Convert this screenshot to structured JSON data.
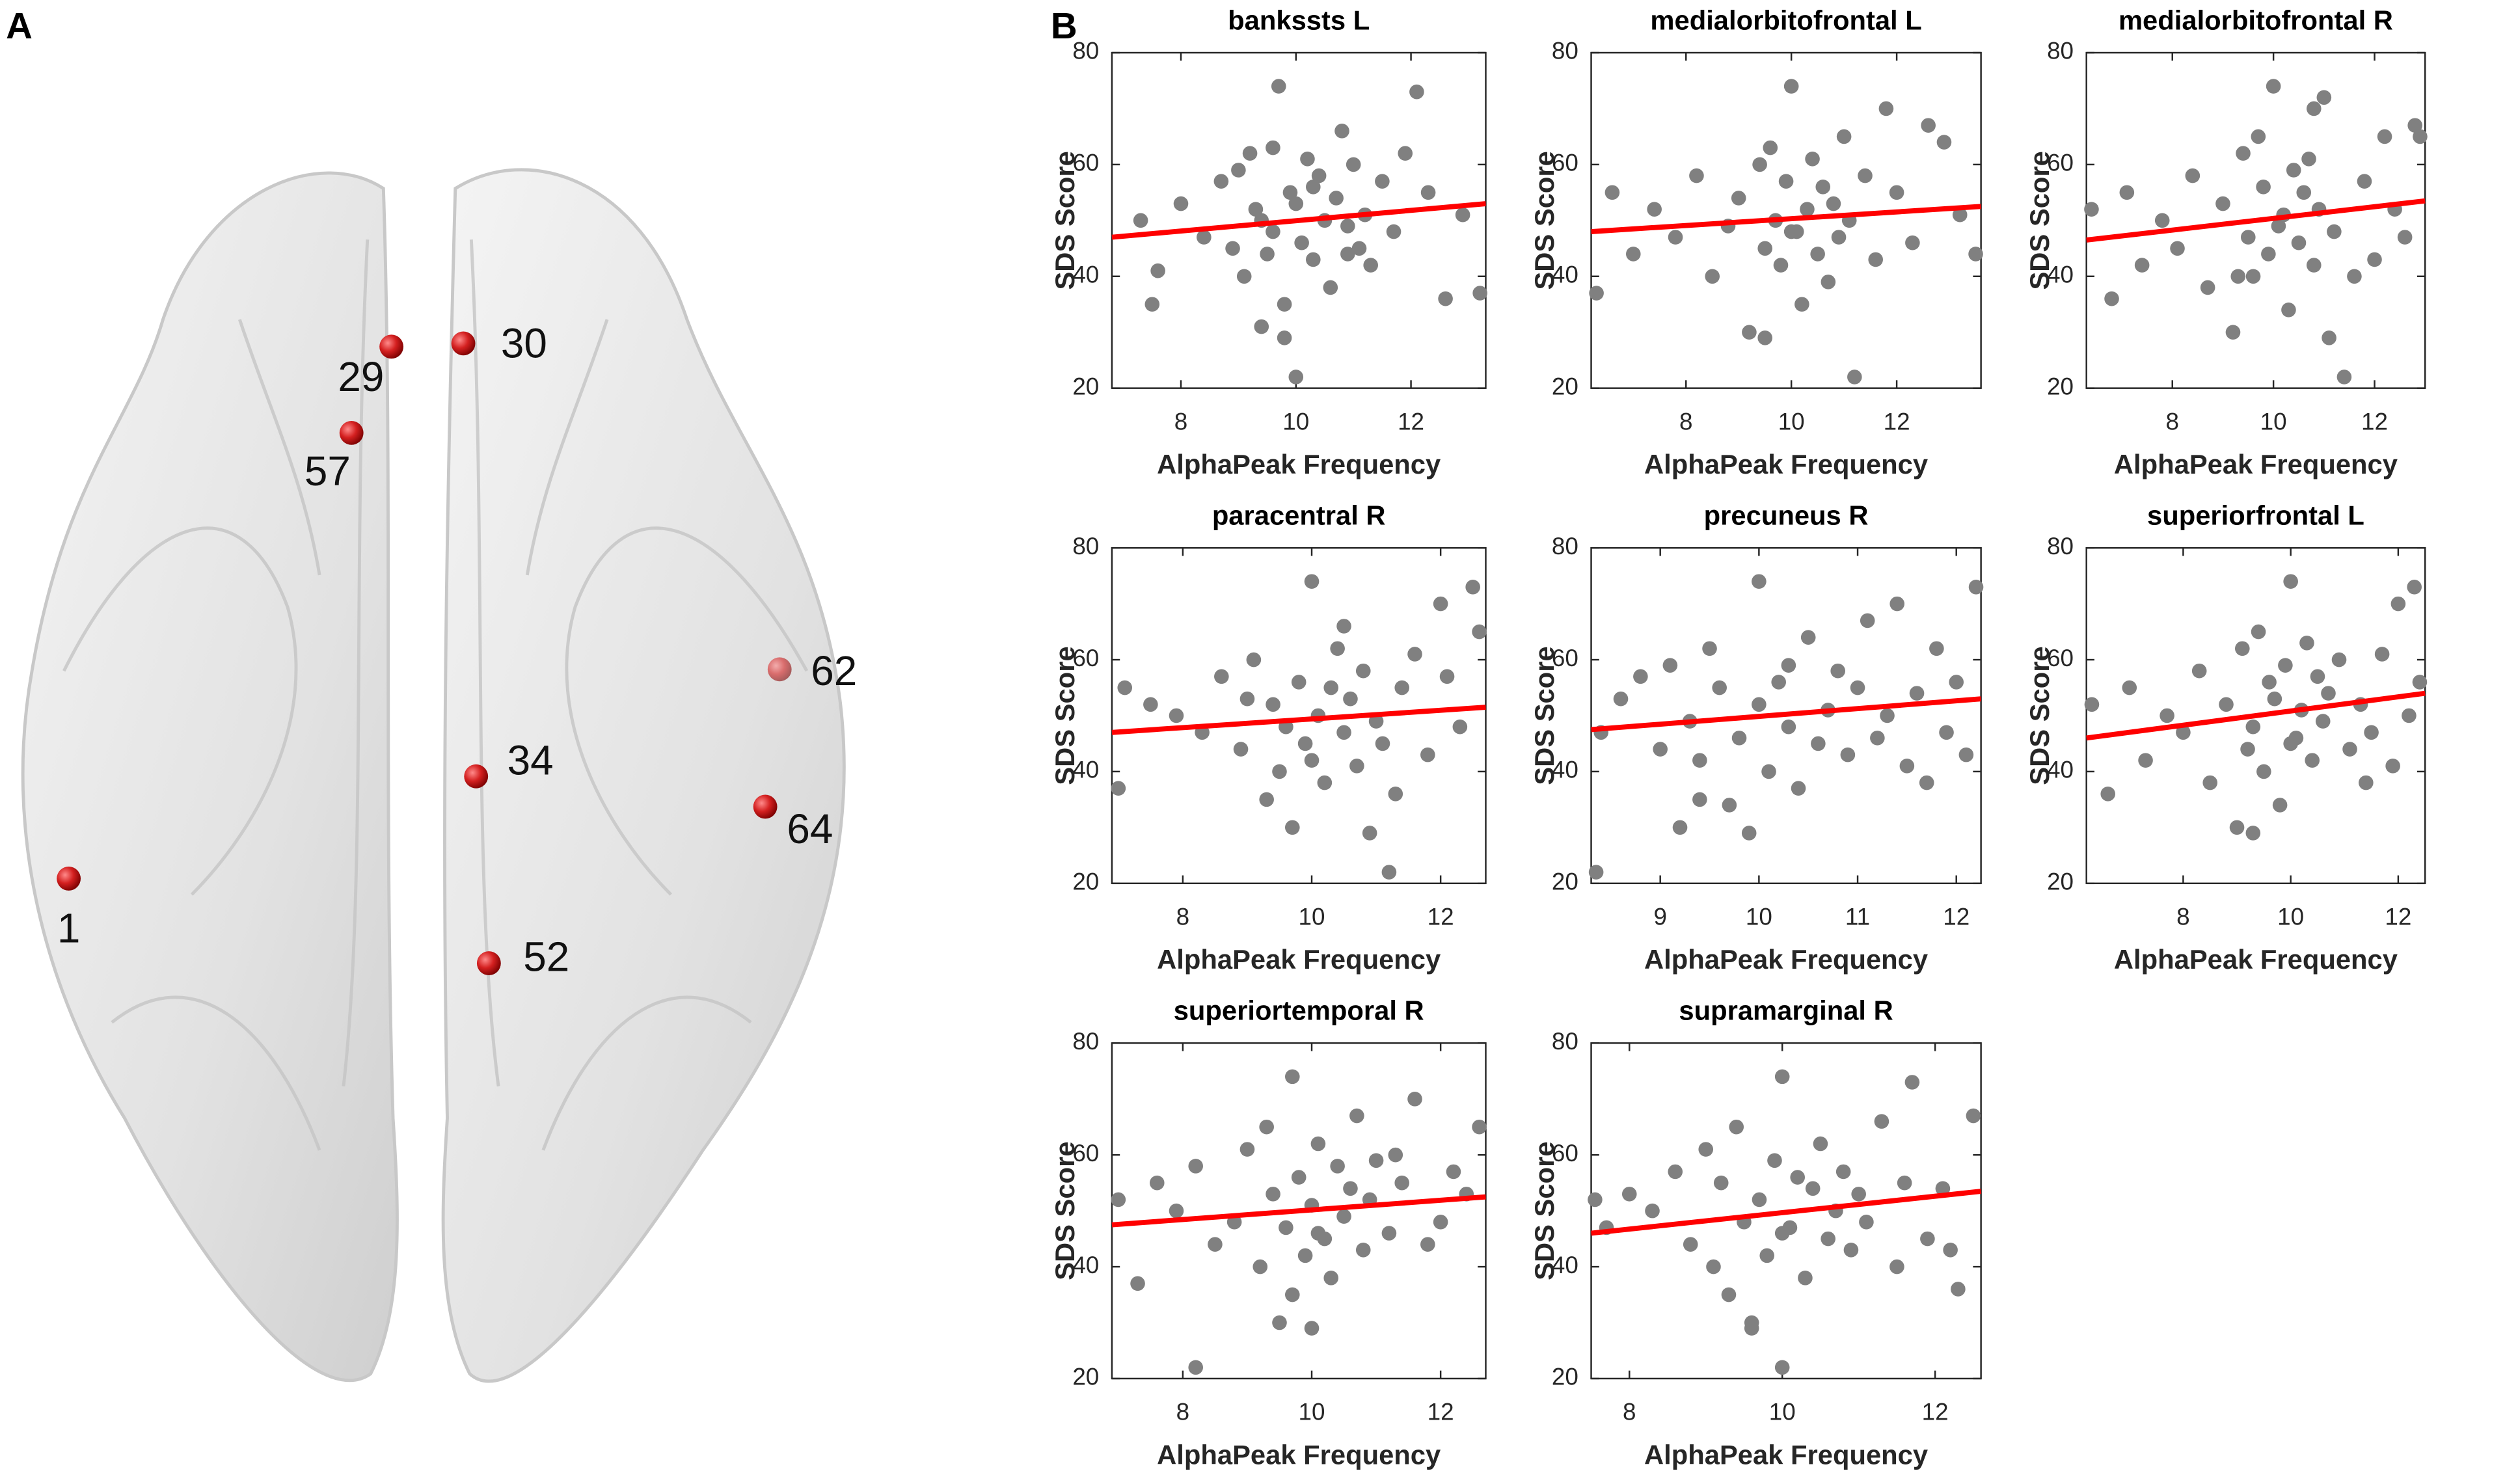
{
  "panel_labels": [
    "A",
    "B"
  ],
  "brain_nodes": [
    {
      "label": "1"
    },
    {
      "label": "29"
    },
    {
      "label": "30"
    },
    {
      "label": "57"
    },
    {
      "label": "62"
    },
    {
      "label": "34"
    },
    {
      "label": "64"
    },
    {
      "label": "52"
    }
  ],
  "chart_data": [
    {
      "type": "scatter",
      "title": "bankssts L",
      "xlabel": "AlphaPeak Frequency",
      "ylabel": "SDS Score",
      "xlim": [
        6.8,
        13.3
      ],
      "xticks": [
        8,
        10,
        12
      ],
      "ylim": [
        20,
        80
      ],
      "yticks": [
        20,
        40,
        60,
        80
      ],
      "series": [
        {
          "type": "scatter",
          "color": "#808080",
          "x": [
            7.3,
            7.5,
            7.6,
            8.0,
            8.4,
            8.7,
            8.9,
            9.0,
            9.1,
            9.2,
            9.3,
            9.4,
            9.5,
            9.6,
            9.7,
            9.8,
            9.9,
            10.0,
            10.0,
            10.1,
            10.2,
            10.3,
            10.4,
            10.5,
            10.6,
            10.7,
            10.8,
            10.9,
            11.0,
            11.1,
            11.2,
            11.3,
            11.5,
            11.7,
            11.9,
            12.1,
            12.3,
            12.6,
            12.9,
            13.2,
            9.8,
            10.3,
            9.6,
            10.9,
            9.4
          ],
          "values": [
            50,
            35,
            41,
            53,
            47,
            57,
            45,
            59,
            40,
            62,
            52,
            31,
            44,
            48,
            74,
            29,
            55,
            53,
            22,
            46,
            61,
            43,
            58,
            50,
            38,
            54,
            66,
            49,
            60,
            45,
            51,
            42,
            57,
            48,
            62,
            73,
            55,
            36,
            51,
            37,
            35,
            56,
            63,
            44,
            50
          ]
        },
        {
          "type": "line",
          "color": "#ff0000",
          "x": [
            6.8,
            13.3
          ],
          "values": [
            47,
            53
          ]
        }
      ]
    },
    {
      "type": "scatter",
      "title": "medialorbitofrontal L",
      "xlabel": "AlphaPeak Frequency",
      "ylabel": "SDS Score",
      "xlim": [
        6.2,
        13.6
      ],
      "xticks": [
        8,
        10,
        12
      ],
      "ylim": [
        20,
        80
      ],
      "yticks": [
        20,
        40,
        60,
        80
      ],
      "series": [
        {
          "type": "scatter",
          "color": "#808080",
          "x": [
            6.3,
            6.6,
            7.0,
            7.4,
            7.8,
            8.2,
            8.5,
            8.8,
            9.0,
            9.2,
            9.4,
            9.5,
            9.6,
            9.7,
            9.8,
            9.9,
            10.0,
            10.1,
            10.2,
            10.3,
            10.4,
            10.5,
            10.6,
            10.7,
            10.8,
            10.9,
            11.0,
            11.1,
            11.2,
            11.4,
            11.6,
            11.8,
            12.0,
            12.3,
            12.6,
            12.9,
            13.2,
            13.5,
            9.5,
            10.0
          ],
          "values": [
            37,
            55,
            44,
            52,
            47,
            58,
            40,
            49,
            54,
            30,
            60,
            45,
            63,
            50,
            42,
            57,
            74,
            48,
            35,
            52,
            61,
            44,
            56,
            39,
            53,
            47,
            65,
            50,
            22,
            58,
            43,
            70,
            55,
            46,
            67,
            64,
            51,
            44,
            29,
            48
          ]
        },
        {
          "type": "line",
          "color": "#ff0000",
          "x": [
            6.2,
            13.6
          ],
          "values": [
            48,
            52.5
          ]
        }
      ]
    },
    {
      "type": "scatter",
      "title": "medialorbitofrontal R",
      "xlabel": "AlphaPeak Frequency",
      "ylabel": "SDS Score",
      "xlim": [
        6.3,
        13.0
      ],
      "xticks": [
        8,
        10,
        12
      ],
      "ylim": [
        20,
        80
      ],
      "yticks": [
        20,
        40,
        60,
        80
      ],
      "series": [
        {
          "type": "scatter",
          "color": "#808080",
          "x": [
            6.4,
            6.8,
            7.1,
            7.4,
            7.8,
            8.1,
            8.4,
            8.7,
            9.0,
            9.2,
            9.4,
            9.5,
            9.6,
            9.7,
            9.8,
            9.9,
            10.0,
            10.1,
            10.2,
            10.3,
            10.4,
            10.5,
            10.6,
            10.7,
            10.8,
            10.9,
            11.0,
            11.2,
            11.4,
            11.6,
            11.8,
            12.0,
            12.2,
            12.4,
            12.6,
            12.8,
            12.9,
            9.3,
            10.8,
            11.1
          ],
          "values": [
            52,
            36,
            55,
            42,
            50,
            45,
            58,
            38,
            53,
            30,
            62,
            47,
            40,
            65,
            56,
            44,
            74,
            49,
            51,
            34,
            59,
            46,
            55,
            61,
            42,
            52,
            72,
            48,
            22,
            40,
            57,
            43,
            65,
            52,
            47,
            67,
            65,
            40,
            70,
            29
          ]
        },
        {
          "type": "line",
          "color": "#ff0000",
          "x": [
            6.3,
            13.0
          ],
          "values": [
            46.5,
            53.5
          ]
        }
      ]
    },
    {
      "type": "scatter",
      "title": "paracentral R",
      "xlabel": "AlphaPeak Frequency",
      "ylabel": "SDS Score",
      "xlim": [
        6.9,
        12.7
      ],
      "xticks": [
        8,
        10,
        12
      ],
      "ylim": [
        20,
        80
      ],
      "yticks": [
        20,
        40,
        60,
        80
      ],
      "series": [
        {
          "type": "scatter",
          "color": "#808080",
          "x": [
            7.0,
            7.1,
            7.5,
            7.9,
            8.3,
            8.6,
            8.9,
            9.1,
            9.3,
            9.4,
            9.5,
            9.6,
            9.7,
            9.8,
            9.9,
            10.0,
            10.0,
            10.1,
            10.2,
            10.3,
            10.4,
            10.5,
            10.6,
            10.7,
            10.8,
            10.9,
            11.0,
            11.1,
            11.2,
            11.4,
            11.6,
            11.8,
            12.0,
            12.1,
            12.3,
            12.5,
            12.6,
            10.5,
            11.3,
            9.0
          ],
          "values": [
            37,
            55,
            52,
            50,
            47,
            57,
            44,
            60,
            35,
            52,
            40,
            48,
            30,
            56,
            45,
            74,
            42,
            50,
            38,
            55,
            62,
            47,
            53,
            41,
            58,
            29,
            49,
            45,
            22,
            55,
            61,
            43,
            70,
            57,
            48,
            73,
            65,
            66,
            36,
            53
          ]
        },
        {
          "type": "line",
          "color": "#ff0000",
          "x": [
            6.9,
            12.7
          ],
          "values": [
            47,
            51.5
          ]
        }
      ]
    },
    {
      "type": "scatter",
      "title": "precuneus R",
      "xlabel": "AlphaPeak Frequency",
      "ylabel": "SDS Score",
      "xlim": [
        8.3,
        12.25
      ],
      "xticks": [
        9,
        10,
        11,
        12
      ],
      "ylim": [
        20,
        80
      ],
      "yticks": [
        20,
        40,
        60,
        80
      ],
      "series": [
        {
          "type": "scatter",
          "color": "#808080",
          "x": [
            8.35,
            8.4,
            8.6,
            8.8,
            9.0,
            9.1,
            9.2,
            9.3,
            9.4,
            9.5,
            9.6,
            9.7,
            9.8,
            9.9,
            10.0,
            10.0,
            10.1,
            10.2,
            10.3,
            10.4,
            10.5,
            10.6,
            10.7,
            10.8,
            10.9,
            11.0,
            11.1,
            11.2,
            11.3,
            11.4,
            11.5,
            11.6,
            11.7,
            11.8,
            11.9,
            12.0,
            12.1,
            12.2,
            9.4,
            10.3
          ],
          "values": [
            22,
            47,
            53,
            57,
            44,
            59,
            30,
            49,
            42,
            62,
            55,
            34,
            46,
            29,
            74,
            52,
            40,
            56,
            48,
            37,
            64,
            45,
            51,
            58,
            43,
            55,
            67,
            46,
            50,
            70,
            41,
            54,
            38,
            62,
            47,
            56,
            43,
            73,
            35,
            59
          ]
        },
        {
          "type": "line",
          "color": "#ff0000",
          "x": [
            8.3,
            12.25
          ],
          "values": [
            47.5,
            53
          ]
        }
      ]
    },
    {
      "type": "scatter",
      "title": "superiorfrontal L",
      "xlabel": "AlphaPeak Frequency",
      "ylabel": "SDS Score",
      "xlim": [
        6.2,
        12.5
      ],
      "xticks": [
        8,
        10,
        12
      ],
      "ylim": [
        20,
        80
      ],
      "yticks": [
        20,
        40,
        60,
        80
      ],
      "series": [
        {
          "type": "scatter",
          "color": "#808080",
          "x": [
            6.3,
            6.6,
            7.0,
            7.3,
            7.7,
            8.0,
            8.3,
            8.5,
            8.8,
            9.0,
            9.1,
            9.2,
            9.3,
            9.4,
            9.5,
            9.6,
            9.7,
            9.8,
            9.9,
            10.0,
            10.1,
            10.2,
            10.3,
            10.4,
            10.5,
            10.6,
            10.7,
            10.9,
            11.1,
            11.3,
            11.5,
            11.7,
            11.9,
            12.0,
            12.2,
            12.4,
            9.3,
            10.0,
            11.4,
            12.3
          ],
          "values": [
            52,
            36,
            55,
            42,
            50,
            47,
            58,
            38,
            52,
            30,
            62,
            44,
            48,
            65,
            40,
            56,
            53,
            34,
            59,
            74,
            46,
            51,
            63,
            42,
            57,
            49,
            54,
            60,
            44,
            52,
            47,
            61,
            41,
            70,
            50,
            56,
            29,
            45,
            38,
            73
          ]
        },
        {
          "type": "line",
          "color": "#ff0000",
          "x": [
            6.2,
            12.5
          ],
          "values": [
            46,
            54
          ]
        }
      ]
    },
    {
      "type": "scatter",
      "title": "superiortemporal R",
      "xlabel": "AlphaPeak Frequency",
      "ylabel": "SDS Score",
      "xlim": [
        6.9,
        12.7
      ],
      "xticks": [
        8,
        10,
        12
      ],
      "ylim": [
        20,
        80
      ],
      "yticks": [
        20,
        40,
        60,
        80
      ],
      "series": [
        {
          "type": "scatter",
          "color": "#808080",
          "x": [
            7.0,
            7.3,
            7.6,
            7.9,
            8.2,
            8.5,
            8.8,
            9.0,
            9.2,
            9.3,
            9.4,
            9.5,
            9.6,
            9.7,
            9.8,
            9.9,
            10.0,
            10.0,
            10.1,
            10.2,
            10.3,
            10.4,
            10.5,
            10.6,
            10.7,
            10.8,
            10.9,
            11.0,
            11.2,
            11.4,
            11.6,
            11.8,
            12.0,
            12.2,
            12.4,
            12.6,
            8.2,
            9.7,
            10.1,
            11.3
          ],
          "values": [
            52,
            37,
            55,
            50,
            58,
            44,
            48,
            61,
            40,
            65,
            53,
            30,
            47,
            74,
            56,
            42,
            51,
            29,
            62,
            45,
            38,
            58,
            49,
            54,
            67,
            43,
            52,
            59,
            46,
            55,
            70,
            44,
            48,
            57,
            53,
            65,
            22,
            35,
            46,
            60
          ]
        },
        {
          "type": "line",
          "color": "#ff0000",
          "x": [
            6.9,
            12.7
          ],
          "values": [
            47.5,
            52.5
          ]
        }
      ]
    },
    {
      "type": "scatter",
      "title": "supramarginal R",
      "xlabel": "AlphaPeak Frequency",
      "ylabel": "SDS Score",
      "xlim": [
        7.5,
        12.6
      ],
      "xticks": [
        8,
        10,
        12
      ],
      "ylim": [
        20,
        80
      ],
      "yticks": [
        20,
        40,
        60,
        80
      ],
      "series": [
        {
          "type": "scatter",
          "color": "#808080",
          "x": [
            7.55,
            7.7,
            8.0,
            8.3,
            8.6,
            8.8,
            9.0,
            9.1,
            9.2,
            9.3,
            9.4,
            9.5,
            9.6,
            9.7,
            9.8,
            9.9,
            10.0,
            10.0,
            10.1,
            10.2,
            10.3,
            10.4,
            10.5,
            10.6,
            10.7,
            10.8,
            10.9,
            11.0,
            11.1,
            11.3,
            11.5,
            11.7,
            11.9,
            12.1,
            12.3,
            12.5,
            9.6,
            10.0,
            11.6,
            12.2
          ],
          "values": [
            52,
            47,
            53,
            50,
            57,
            44,
            61,
            40,
            55,
            35,
            65,
            48,
            30,
            52,
            42,
            59,
            74,
            22,
            47,
            56,
            38,
            54,
            62,
            45,
            50,
            57,
            43,
            53,
            48,
            66,
            40,
            73,
            45,
            54,
            36,
            67,
            29,
            46,
            55,
            43
          ]
        },
        {
          "type": "line",
          "color": "#ff0000",
          "x": [
            7.5,
            12.6
          ],
          "values": [
            46,
            53.5
          ]
        }
      ]
    }
  ]
}
